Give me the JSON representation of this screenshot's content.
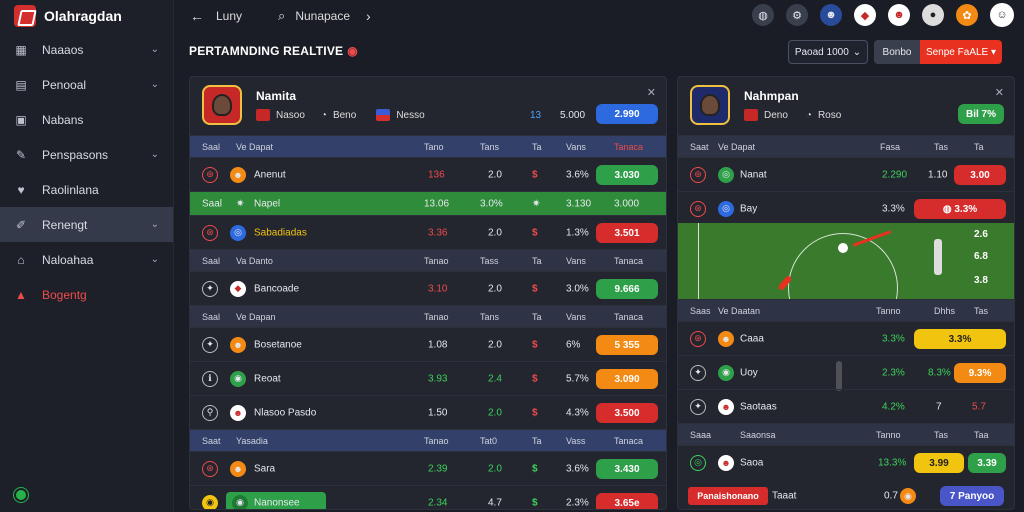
{
  "brand": {
    "name": "Olahragdan"
  },
  "sidebar": {
    "items": [
      {
        "label": "Naaaos"
      },
      {
        "label": "Penooal"
      },
      {
        "label": "Nabans"
      },
      {
        "label": "Penspasons"
      },
      {
        "label": "Raolinlana"
      },
      {
        "label": "Renengt"
      },
      {
        "label": "Naloahaa"
      },
      {
        "label": "Bogentg"
      }
    ]
  },
  "topbar": {
    "crumb": "Luny",
    "crumb2": "Nunapace"
  },
  "header": {
    "title": "PERTAMNDING REALTIVE",
    "period": "Paoad 1000",
    "seg_a": "Bonbo",
    "seg_b": "Senpe FaALE"
  },
  "left_panel": {
    "name": "Namita",
    "sub1": "Nasoo",
    "sub2": "Beno",
    "sub3": "Nesso",
    "score_label": "2.990",
    "header1": [
      "Saal",
      "Ve Dapat",
      "Tano",
      "Tans",
      "Ta",
      "Vans",
      "Tanaca"
    ],
    "rows": [
      {
        "name": "Anenut",
        "c1": "136",
        "c2": "2.0",
        "c3": "$",
        "c4": "3.6%",
        "btn": "3.030"
      },
      {
        "name": "Napel",
        "c1": "13.06",
        "c2": "3.0%",
        "c3": "$",
        "c4": "3.130",
        "btn": "3.000"
      },
      {
        "name": "Sabadiadas",
        "c1": "3.36",
        "c2": "2.0",
        "c3": "$",
        "c4": "1.3%",
        "btn": "3.501"
      },
      {
        "name": "Bancoade",
        "c1": "3.10",
        "c2": "2.0",
        "c3": "$",
        "c4": "3.0%",
        "btn": "9.666"
      },
      {
        "name": "Bosetanoe",
        "c1": "1.08",
        "c2": "2.0",
        "c3": "$",
        "c4": "6%",
        "btn": "5 355"
      },
      {
        "name": "Reoat",
        "c1": "3.93",
        "c2": "2.4",
        "c3": "$",
        "c4": "5.7%",
        "btn": "3.090"
      },
      {
        "name": "Nlasoo Pasdo",
        "c1": "1.50",
        "c2": "2.0",
        "c3": "$",
        "c4": "4.3%",
        "btn": "3.500"
      },
      {
        "name": "Sara",
        "c1": "2.39",
        "c2": "2.0",
        "c3": "$",
        "c4": "3.6%",
        "btn": "3.430"
      },
      {
        "name": "Nanonsee",
        "c1": "2.34",
        "c2": "4.7",
        "c3": "$",
        "c4": "2.3%",
        "btn": "3.65e"
      }
    ],
    "header2": [
      "Saal",
      "Va Danto",
      "Tanao",
      "Tass",
      "Ta",
      "Vans",
      "Tanaca"
    ],
    "header3": [
      "Saal",
      "Ve Dapan",
      "Tanao",
      "Tans",
      "Ta",
      "Vans",
      "Tanaca"
    ],
    "header4": [
      "Saat",
      "Yasadia",
      "Tanao",
      "Tat0",
      "Ta",
      "Vass",
      "Tanaca"
    ]
  },
  "right_panel": {
    "name": "Nahmpan",
    "sub1": "Deno",
    "sub2": "Roso",
    "score_label": "Bil 7%",
    "header1": [
      "Saat",
      "Ve Dapat",
      "Fasa",
      "Tas",
      "Ta"
    ],
    "rows": [
      {
        "name": "Nanat",
        "c1": "2.290",
        "c2": "1.10",
        "btn": "3.00"
      },
      {
        "name": "Bay",
        "c1": "3.3%",
        "btn": "3.3%"
      },
      {
        "name": "Caaa",
        "c1": "3.3%",
        "btn": "3.3%"
      },
      {
        "name": "Uoy",
        "c1": "2.3%",
        "c2": "8.3%",
        "btn": "9.3%"
      },
      {
        "name": "Saotaas",
        "c1": "4.2%",
        "c2": "7",
        "btn": "5.7"
      },
      {
        "name": "Saoa",
        "c1": "13.3%",
        "c2": "3.99",
        "btn": "3.39"
      }
    ],
    "header2": [
      "Saas",
      "Ve Daatan",
      "Tanno",
      "Dhhs",
      "Tas"
    ],
    "header3": [
      "Saaa",
      "Saaonsa",
      "Tanno",
      "Tas",
      "Taa"
    ],
    "field_labels": [
      "2.6",
      "6.8",
      "3.8"
    ],
    "footer_label": "Panaishonano",
    "footer_val": "Taaat",
    "footer_num": "0.7",
    "footer_btn": "7 Panyoo"
  },
  "colors": {
    "green": "#2fa04a",
    "red": "#d72c2c",
    "orange": "#f28a14",
    "blue": "#2d6ae0",
    "yellow": "#f1c40f"
  }
}
